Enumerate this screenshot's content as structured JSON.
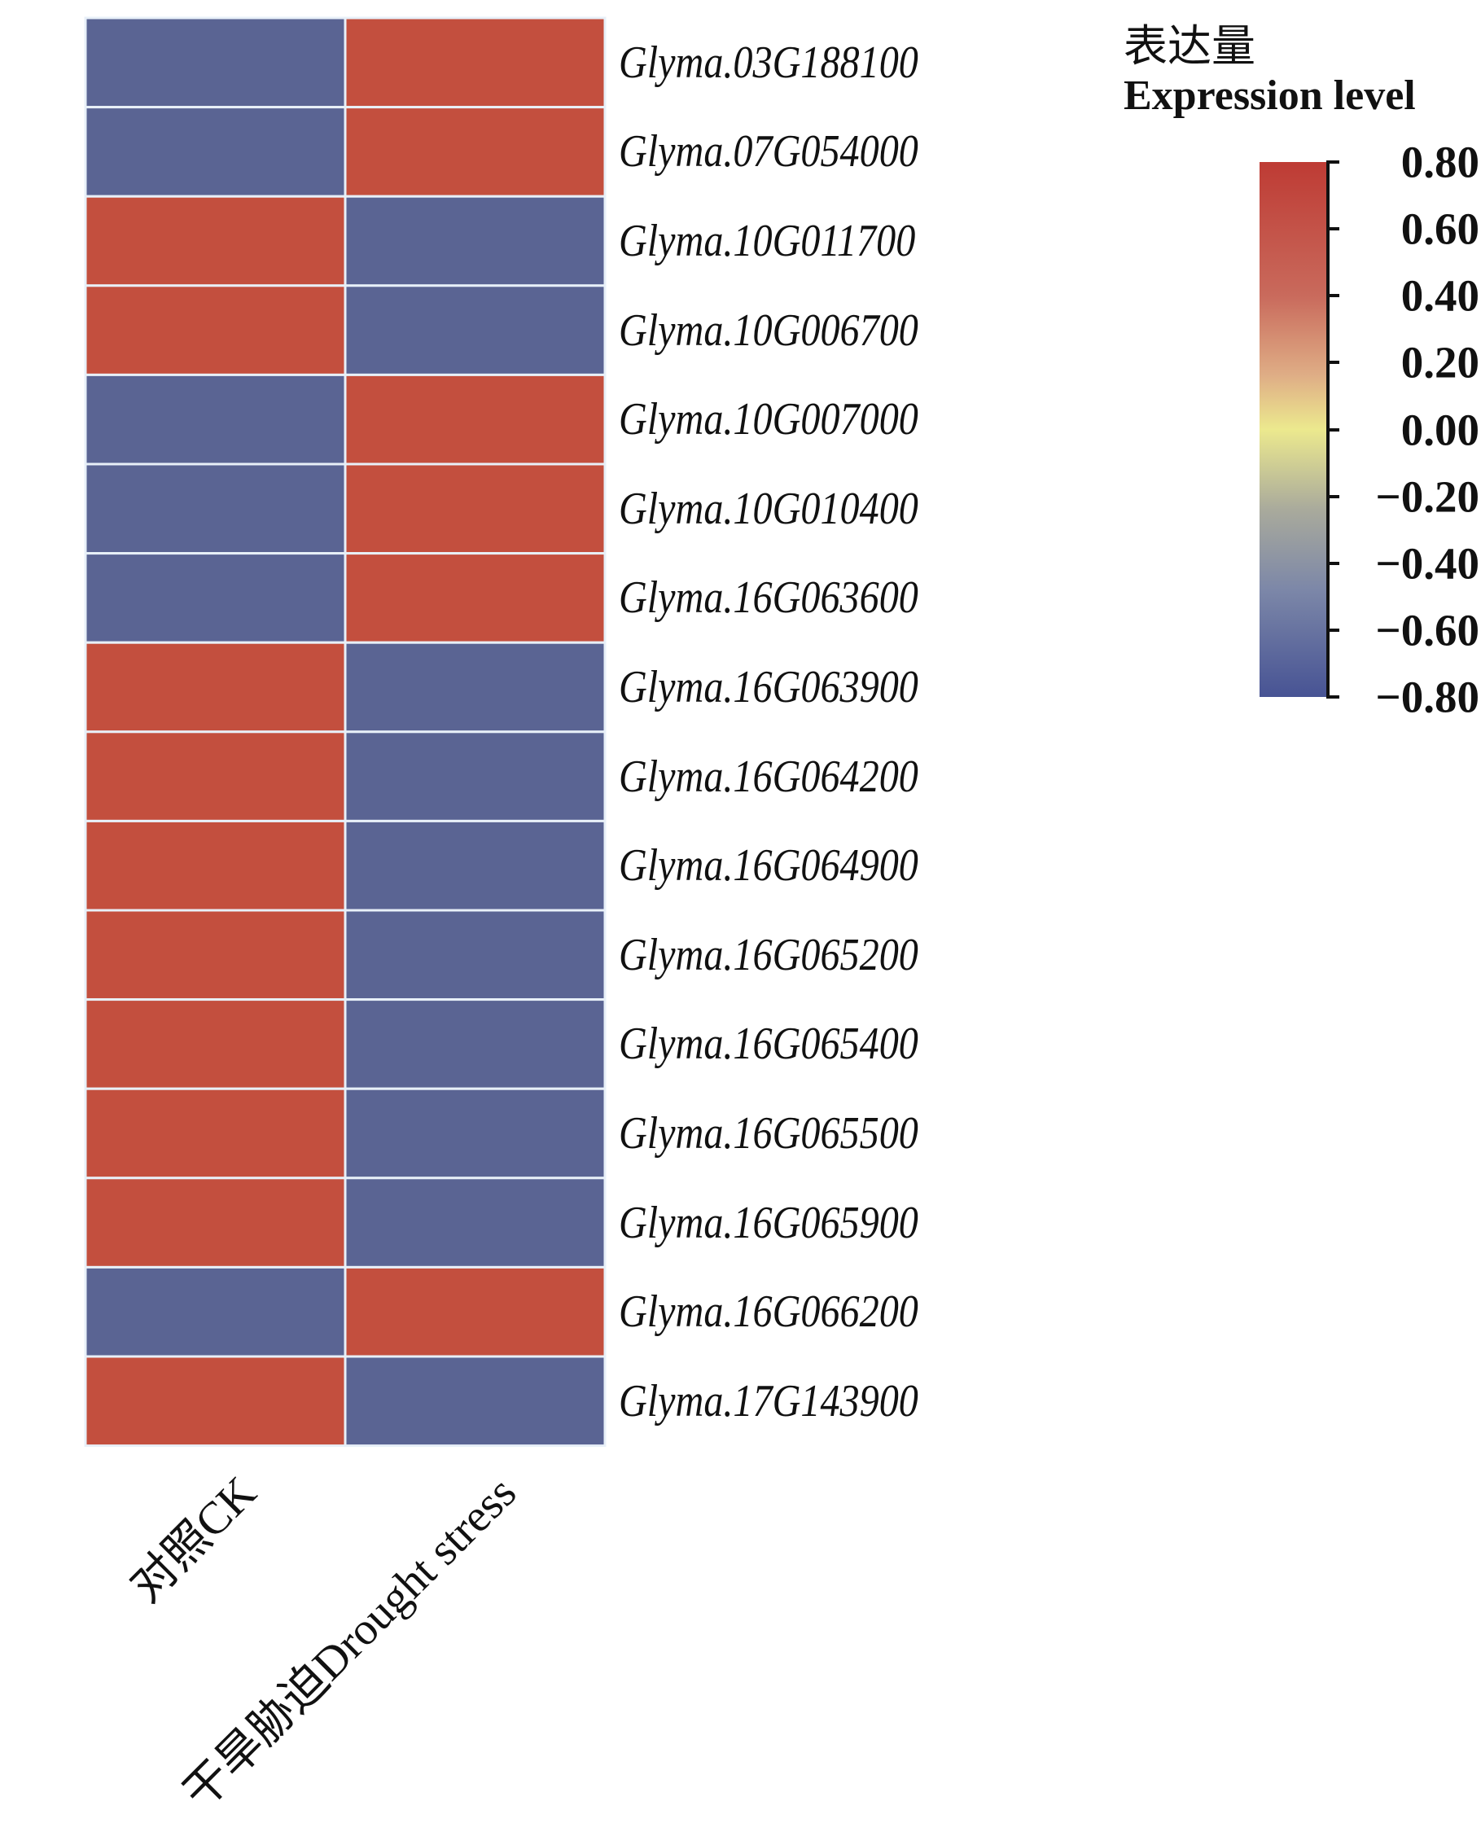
{
  "chart_data": {
    "type": "heatmap",
    "title": "",
    "columns": [
      "对照CK",
      "干旱胁迫Drought stress"
    ],
    "rows": [
      "Glyma.03G188100",
      "Glyma.07G054000",
      "Glyma.10G011700",
      "Glyma.10G006700",
      "Glyma.10G007000",
      "Glyma.10G010400",
      "Glyma.16G063600",
      "Glyma.16G063900",
      "Glyma.16G064200",
      "Glyma.16G064900",
      "Glyma.16G065200",
      "Glyma.16G065400",
      "Glyma.16G065500",
      "Glyma.16G065900",
      "Glyma.16G066200",
      "Glyma.17G143900"
    ],
    "values": [
      [
        -0.71,
        0.71
      ],
      [
        -0.71,
        0.71
      ],
      [
        0.71,
        -0.71
      ],
      [
        0.71,
        -0.71
      ],
      [
        -0.71,
        0.71
      ],
      [
        -0.71,
        0.71
      ],
      [
        -0.71,
        0.71
      ],
      [
        0.71,
        -0.71
      ],
      [
        0.71,
        -0.71
      ],
      [
        0.71,
        -0.71
      ],
      [
        0.71,
        -0.71
      ],
      [
        0.71,
        -0.71
      ],
      [
        0.71,
        -0.71
      ],
      [
        0.71,
        -0.71
      ],
      [
        -0.71,
        0.71
      ],
      [
        0.71,
        -0.71
      ]
    ],
    "legend": {
      "title_cn": "表达量",
      "title_en": "Expression level",
      "range": [
        -0.8,
        0.8
      ],
      "ticks": [
        "0.80",
        "0.60",
        "0.40",
        "0.20",
        "0.00",
        "−0.20",
        "−0.40",
        "−0.60",
        "−0.80"
      ],
      "placement": "top-right"
    },
    "colors": {
      "high": "#be3b34",
      "mid": "#ece98e",
      "low": "#475394",
      "grid": "#e8f0f8"
    }
  }
}
